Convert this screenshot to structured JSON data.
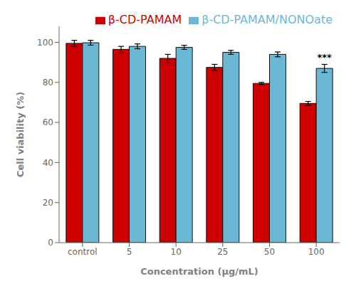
{
  "chart_data": {
    "type": "bar",
    "xlabel": "Concentration (μg/mL)",
    "ylabel": "Cell viability (%)",
    "categories": [
      "control",
      "5",
      "10",
      "25",
      "50",
      "100"
    ],
    "series": [
      {
        "name": "β-CD-PAMAM",
        "color": "#CC0000",
        "values": [
          99.5,
          96.5,
          92.0,
          87.5,
          79.5,
          69.5
        ],
        "errors": [
          1.5,
          1.5,
          2.0,
          1.5,
          0.5,
          1.0
        ]
      },
      {
        "name": "β-CD-PAMAM/NONOate",
        "color": "#6BB8D4",
        "values": [
          99.8,
          98.0,
          97.5,
          95.0,
          94.0,
          87.0
        ],
        "errors": [
          1.2,
          1.2,
          1.0,
          1.0,
          1.2,
          2.0
        ]
      }
    ],
    "ylim": [
      0,
      108
    ],
    "yticks": [
      0,
      20,
      40,
      60,
      80,
      100
    ],
    "grid": false,
    "legend": "upper right",
    "annotations": [
      {
        "text": "***",
        "series": "β-CD-PAMAM/NONOate",
        "category": "100"
      }
    ]
  }
}
